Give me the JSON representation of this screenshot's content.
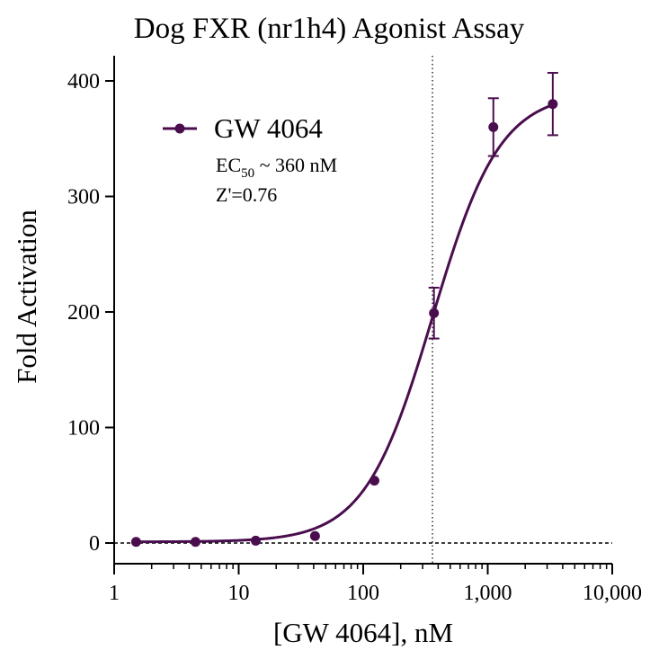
{
  "chart_data": {
    "type": "scatter",
    "title": "Dog FXR (nr1h4) Agonist Assay",
    "xlabel": "[GW 4064], nM",
    "ylabel": "Fold Activation",
    "xscale": "log",
    "xlim": [
      1,
      10000
    ],
    "ylim": [
      -15,
      420
    ],
    "x_ticks": [
      {
        "value": 1,
        "label": "1"
      },
      {
        "value": 10,
        "label": "10"
      },
      {
        "value": 100,
        "label": "100"
      },
      {
        "value": 1000,
        "label": "1,000"
      },
      {
        "value": 10000,
        "label": "10,000"
      }
    ],
    "y_ticks": [
      {
        "value": 0,
        "label": "0"
      },
      {
        "value": 100,
        "label": "100"
      },
      {
        "value": 200,
        "label": "200"
      },
      {
        "value": 300,
        "label": "300"
      },
      {
        "value": 400,
        "label": "400"
      }
    ],
    "color": "#4a0e4e",
    "series": [
      {
        "name": "GW 4064",
        "points": [
          {
            "x": 1.5,
            "y": 1
          },
          {
            "x": 4.5,
            "y": 1
          },
          {
            "x": 13.7,
            "y": 2
          },
          {
            "x": 41,
            "y": 6
          },
          {
            "x": 123,
            "y": 54
          },
          {
            "x": 370,
            "y": 199,
            "err": 22
          },
          {
            "x": 1110,
            "y": 360,
            "err": 25
          },
          {
            "x": 3330,
            "y": 380,
            "err": 27
          }
        ],
        "fit": {
          "bottom": 1,
          "top": 390,
          "ec50": 360,
          "hill": 1.6
        }
      }
    ],
    "reference_lines": {
      "vertical_x": 360,
      "horizontal_y": 0
    },
    "legend": {
      "position": "top-left",
      "label": "GW 4064",
      "ec50_prefix": "EC",
      "ec50_sub": "50",
      "ec50_value": " ~ 360 nM",
      "z_prime": "Z'=0.76"
    }
  }
}
